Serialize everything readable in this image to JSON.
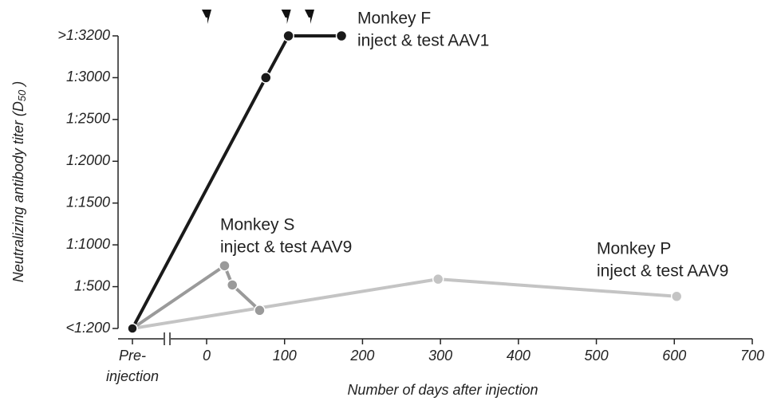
{
  "chart_data": {
    "type": "line",
    "ylabel": {
      "text": "Neutralizing antibody titer (D",
      "sub": "50",
      "end": " )"
    },
    "xlabel": "Number of days after injection",
    "pre_label": [
      "Pre-",
      "injection"
    ],
    "xlim": [
      0,
      700
    ],
    "xticks": [
      0,
      100,
      200,
      300,
      400,
      500,
      600,
      700
    ],
    "ylim": [
      200,
      3200
    ],
    "yticks": [
      {
        "value": 200,
        "label": "<1:200"
      },
      {
        "value": 500,
        "label": "1:500"
      },
      {
        "value": 1000,
        "label": "1:1000"
      },
      {
        "value": 1500,
        "label": "1:1500"
      },
      {
        "value": 2000,
        "label": "1:2000"
      },
      {
        "value": 2500,
        "label": "1:2500"
      },
      {
        "value": 3000,
        "label": "1:3000"
      },
      {
        "value": 3200,
        "label": ">1:3200"
      }
    ],
    "injection_days": [
      0,
      102,
      132
    ],
    "series": [
      {
        "name": [
          "Monkey F",
          "inject & test AAV1"
        ],
        "color": "#1a1a1a",
        "pre": 200,
        "x": [
          76,
          105,
          173
        ],
        "values": [
          3000,
          3200,
          3200
        ]
      },
      {
        "name": [
          "Monkey S",
          "inject & test AAV9"
        ],
        "color": "#9a9a9a",
        "pre": 200,
        "x": [
          23,
          33,
          68
        ],
        "values": [
          750,
          520,
          330
        ]
      },
      {
        "name": [
          "Monkey P",
          "inject & test AAV9"
        ],
        "color": "#c4c4c4",
        "pre": 200,
        "x": [
          297,
          603
        ],
        "values": [
          590,
          430
        ]
      }
    ]
  }
}
